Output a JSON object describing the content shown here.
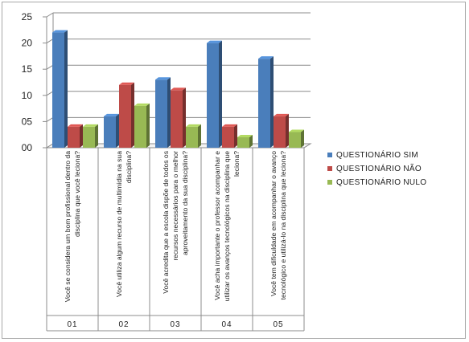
{
  "chart_data": {
    "type": "bar",
    "categories": [
      "01",
      "02",
      "03",
      "04",
      "05"
    ],
    "questions": [
      [
        "Você se considera um bom profissional dentro da",
        "disciplina que você leciona?"
      ],
      [
        "Você utiliza algum recurso de multimídia na sua",
        "disciplina?"
      ],
      [
        "Você acredita que a escola dispõe de todos os",
        "recursos necessários para o melhor",
        "aproveitamento da sua disciplina?"
      ],
      [
        "Você acha importante o professor acompanhar e",
        "utilizar os avanços tecnológicos na disciplina que",
        "leciona?"
      ],
      [
        "Você tem dificuldade em acompanhar o avanço",
        "tecnológico e utilizá-lo na disciplina que leciona?"
      ]
    ],
    "series": [
      {
        "name": "QUESTIONÁRIO SIM",
        "color": "#4A7EBB",
        "values": [
          22,
          6,
          13,
          20,
          17
        ]
      },
      {
        "name": "QUESTIONÁRIO NÃO",
        "color": "#BE4B48",
        "values": [
          4,
          12,
          11,
          4,
          6
        ]
      },
      {
        "name": "QUESTIONÁRIO NULO",
        "color": "#98B954",
        "values": [
          4,
          8,
          4,
          2,
          3
        ]
      }
    ],
    "y_tick_labels": [
      "00",
      "05",
      "10",
      "15",
      "20",
      "25"
    ],
    "ylim": [
      0,
      25
    ],
    "grid": true,
    "legend_position": "right",
    "title": "",
    "xlabel": "",
    "ylabel": ""
  }
}
